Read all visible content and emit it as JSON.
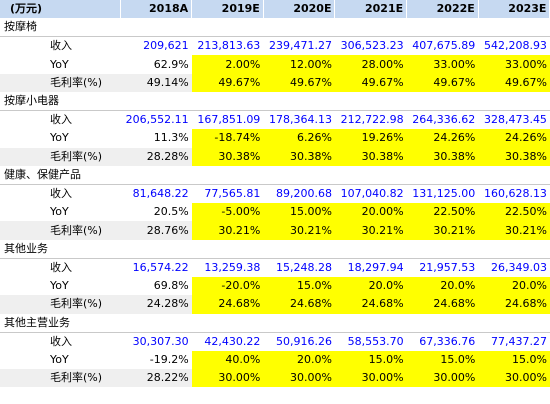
{
  "header": {
    "unit": "(万元)",
    "years": [
      "2018A",
      "2019E",
      "2020E",
      "2021E",
      "2022E",
      "2023E"
    ]
  },
  "segments": [
    {
      "name": "按摩椅",
      "rows": [
        {
          "label": "收入",
          "values": [
            "209,621",
            "213,813.63",
            "239,471.27",
            "306,523.23",
            "407,675.89",
            "542,208.93"
          ]
        },
        {
          "label": "YoY",
          "values": [
            "62.9%",
            "2.00%",
            "12.00%",
            "28.00%",
            "33.00%",
            "33.00%"
          ]
        },
        {
          "label": "毛利率(%)",
          "values": [
            "49.14%",
            "49.67%",
            "49.67%",
            "49.67%",
            "49.67%",
            "49.67%"
          ]
        }
      ]
    },
    {
      "name": "按摩小电器",
      "rows": [
        {
          "label": "收入",
          "values": [
            "206,552.11",
            "167,851.09",
            "178,364.13",
            "212,722.98",
            "264,336.62",
            "328,473.45"
          ]
        },
        {
          "label": "YoY",
          "values": [
            "11.3%",
            "-18.74%",
            "6.26%",
            "19.26%",
            "24.26%",
            "24.26%"
          ]
        },
        {
          "label": "毛利率(%)",
          "values": [
            "28.28%",
            "30.38%",
            "30.38%",
            "30.38%",
            "30.38%",
            "30.38%"
          ]
        }
      ]
    },
    {
      "name": "健康、保健产品",
      "rows": [
        {
          "label": "收入",
          "values": [
            "81,648.22",
            "77,565.81",
            "89,200.68",
            "107,040.82",
            "131,125.00",
            "160,628.13"
          ]
        },
        {
          "label": "YoY",
          "values": [
            "20.5%",
            "-5.00%",
            "15.00%",
            "20.00%",
            "22.50%",
            "22.50%"
          ]
        },
        {
          "label": "毛利率(%)",
          "values": [
            "28.76%",
            "30.21%",
            "30.21%",
            "30.21%",
            "30.21%",
            "30.21%"
          ]
        }
      ]
    },
    {
      "name": "其他业务",
      "rows": [
        {
          "label": "收入",
          "values": [
            "16,574.22",
            "13,259.38",
            "15,248.28",
            "18,297.94",
            "21,957.53",
            "26,349.03"
          ]
        },
        {
          "label": "YoY",
          "values": [
            "69.8%",
            "-20.0%",
            "15.0%",
            "20.0%",
            "20.0%",
            "20.0%"
          ]
        },
        {
          "label": "毛利率(%)",
          "values": [
            "24.28%",
            "24.68%",
            "24.68%",
            "24.68%",
            "24.68%",
            "24.68%"
          ]
        }
      ]
    },
    {
      "name": "其他主营业务",
      "rows": [
        {
          "label": "收入",
          "values": [
            "30,307.30",
            "42,430.22",
            "50,916.26",
            "58,553.70",
            "67,336.76",
            "77,437.27"
          ]
        },
        {
          "label": "YoY",
          "values": [
            "-19.2%",
            "40.0%",
            "20.0%",
            "15.0%",
            "15.0%",
            "15.0%"
          ]
        },
        {
          "label": "毛利率(%)",
          "values": [
            "28.22%",
            "30.00%",
            "30.00%",
            "30.00%",
            "30.00%",
            "30.00%"
          ]
        }
      ]
    }
  ],
  "colors": {
    "header_bg": "#c6d9f1",
    "highlight": "#ffff00",
    "revenue_text": "#0000ff",
    "shade_row": "#efefef"
  }
}
